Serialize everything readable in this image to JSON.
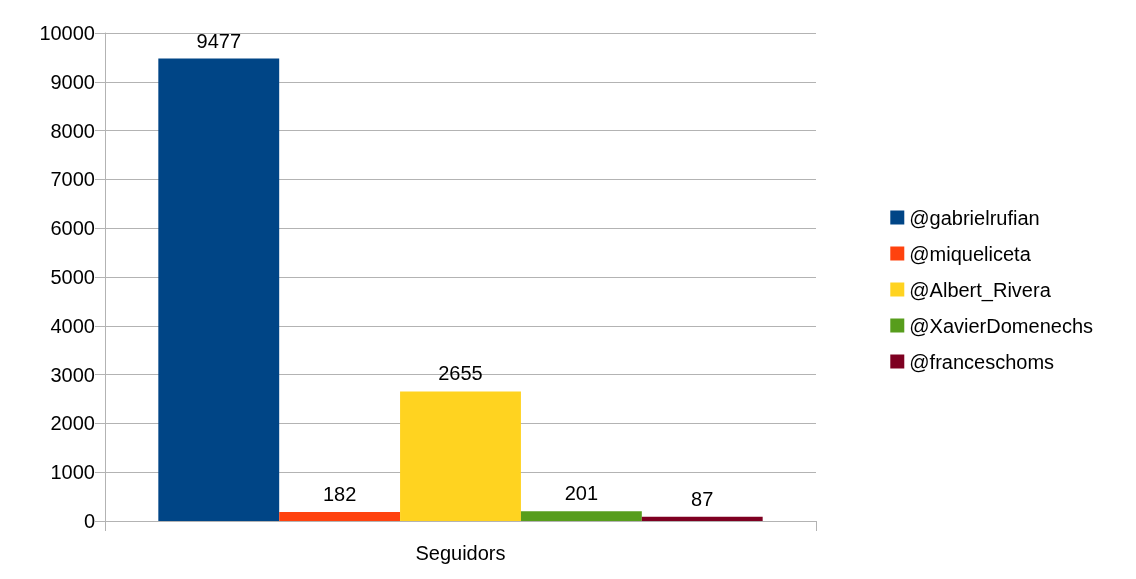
{
  "chart_data": {
    "type": "bar",
    "categories": [
      "Seguidors"
    ],
    "series": [
      {
        "name": "@gabrielrufian",
        "color": "#004586",
        "values": [
          9477
        ]
      },
      {
        "name": "@miqueliceta",
        "color": "#ff420e",
        "values": [
          182
        ]
      },
      {
        "name": "@Albert_Rivera",
        "color": "#ffd320",
        "values": [
          2655
        ]
      },
      {
        "name": "@XavierDomenechs",
        "color": "#579d1c",
        "values": [
          201
        ]
      },
      {
        "name": "@franceschoms",
        "color": "#7e0021",
        "values": [
          87
        ]
      }
    ],
    "ylim": [
      0,
      10000
    ],
    "yticks": [
      0,
      1000,
      2000,
      3000,
      4000,
      5000,
      6000,
      7000,
      8000,
      9000,
      10000
    ],
    "grid": "y",
    "legend": "right",
    "data_labels": true
  }
}
